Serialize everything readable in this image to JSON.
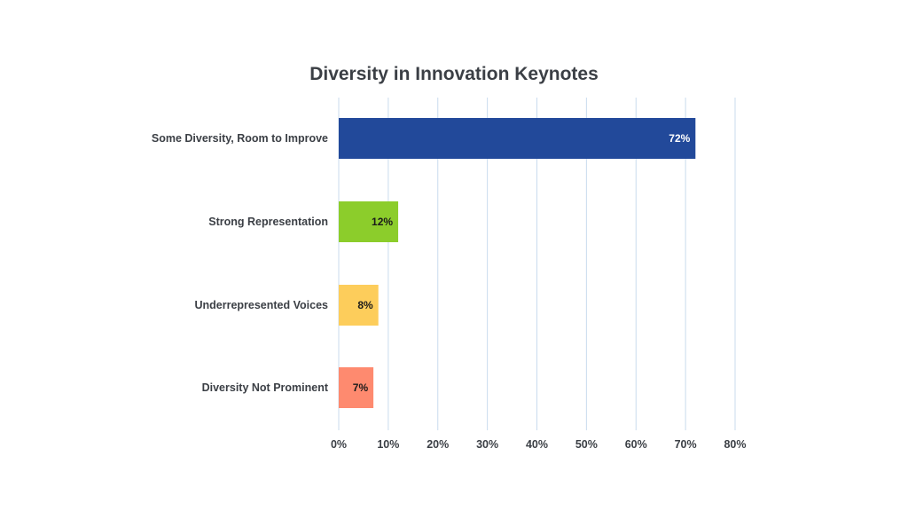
{
  "chart_data": {
    "type": "bar",
    "orientation": "horizontal",
    "title": "Diversity in Innovation Keynotes",
    "xlabel": "",
    "ylabel": "",
    "categories": [
      "Some Diversity, Room to Improve",
      "Strong Representation",
      "Underrepresented Voices",
      "Diversity Not Prominent"
    ],
    "values": [
      72,
      12,
      8,
      7
    ],
    "data_labels": [
      "72%",
      "12%",
      "8%",
      "7%"
    ],
    "colors": [
      "#22499a",
      "#8ccd2b",
      "#fdcd5b",
      "#fe8a6f"
    ],
    "data_label_colors": [
      "#ffffff",
      "#1a1a1a",
      "#1a1a1a",
      "#1a1a1a"
    ],
    "xlim": [
      0,
      80
    ],
    "xticks": [
      0,
      10,
      20,
      30,
      40,
      50,
      60,
      70,
      80
    ],
    "xtick_labels": [
      "0%",
      "10%",
      "20%",
      "30%",
      "40%",
      "50%",
      "60%",
      "70%",
      "80%"
    ],
    "grid": "vertical",
    "grid_color": "#c9dbee",
    "legend": "none"
  }
}
